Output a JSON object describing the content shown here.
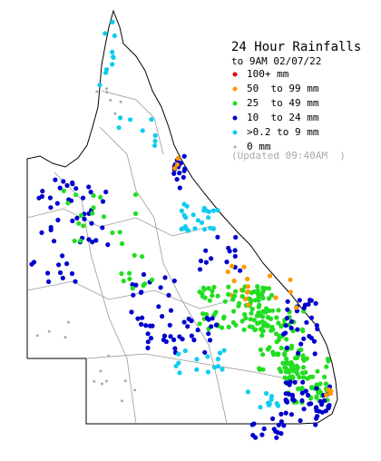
{
  "title": "24 Hour Rainfalls",
  "subtitle": "to 9AM 02/07/22",
  "legend": [
    {
      "label": "100+ mm",
      "color": "#ee0000"
    },
    {
      "label": "50  to 99 mm",
      "color": "#ff9900"
    },
    {
      "label": "25  to 49 mm",
      "color": "#22dd22"
    },
    {
      "label": "10  to 24 mm",
      "color": "#0000cc"
    },
    {
      "label": ">0.2 to 9 mm",
      "color": "#11ccee"
    },
    {
      "label": "0 mm",
      "color": "#aaaaaa"
    }
  ],
  "updated": "(Updated 09:40AM  )"
}
